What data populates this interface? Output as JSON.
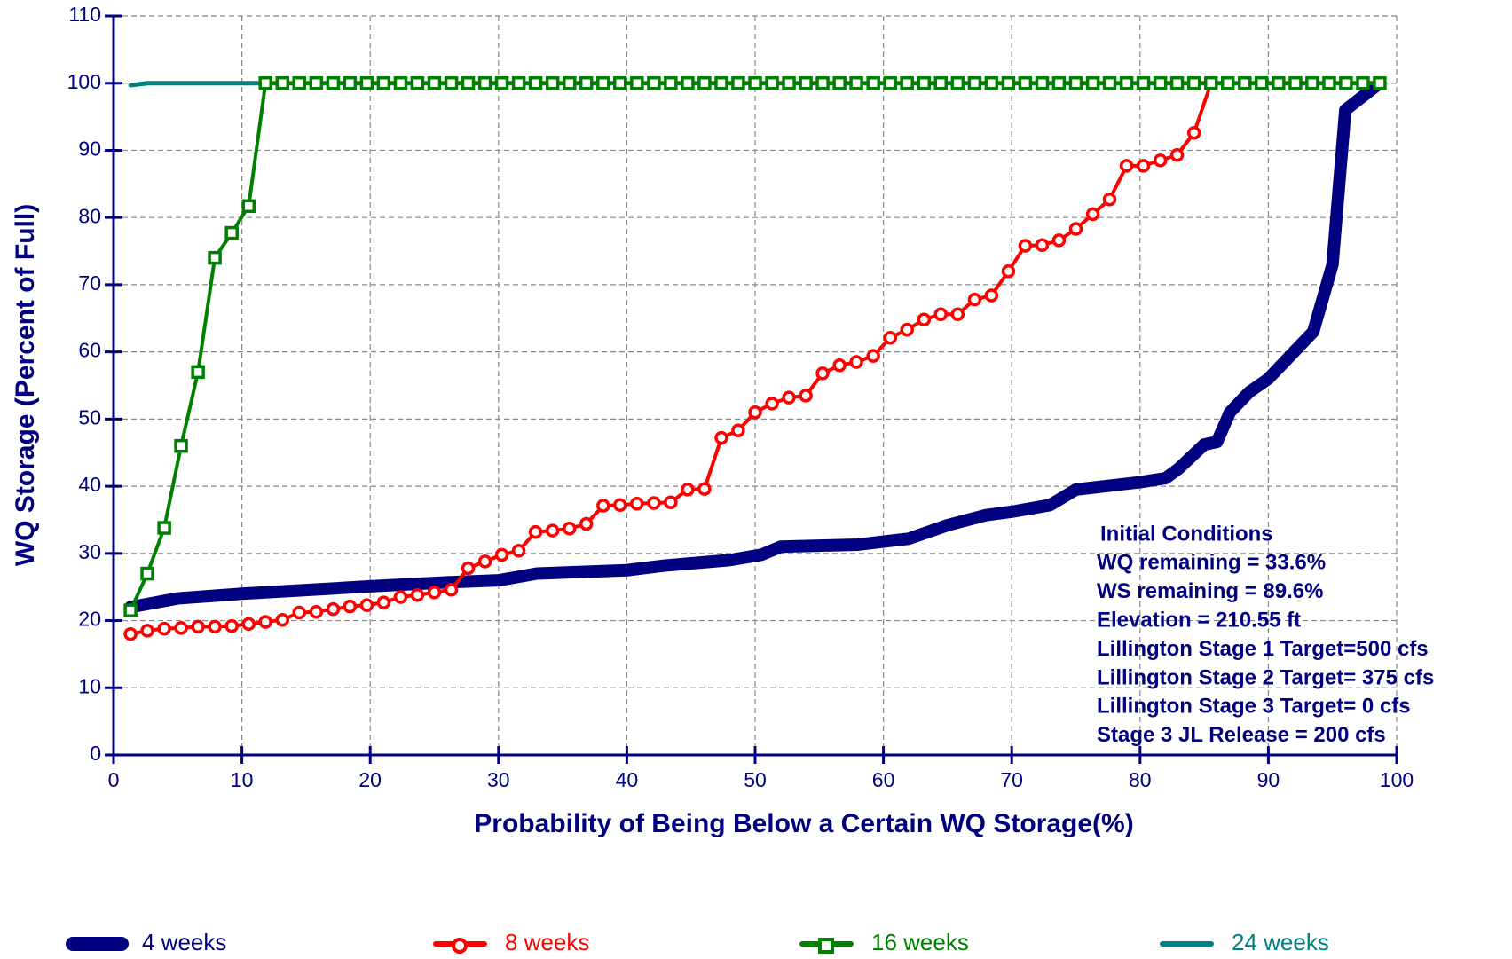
{
  "chart_data": {
    "type": "line",
    "ylabel": "WQ Storage (Percent of Full)",
    "xlabel": "Probability of Being Below a Certain WQ Storage(%)",
    "xlim": [
      0,
      100
    ],
    "xticks": [
      0,
      10,
      20,
      30,
      40,
      50,
      60,
      70,
      80,
      90,
      100
    ],
    "ylim": [
      0,
      110
    ],
    "yticks": [
      0,
      10,
      20,
      30,
      40,
      50,
      60,
      70,
      80,
      90,
      100,
      110
    ],
    "grid": true,
    "legend": "bottom",
    "annotation": [
      "Initial Conditions",
      "WQ remaining = 33.6%",
      "WS remaining = 89.6%",
      "Elevation = 210.55 ft",
      "Lillington Stage 1 Target=500 cfs",
      "Lillington Stage 2 Target= 375 cfs",
      "Lillington Stage 3 Target= 0 cfs",
      "Stage 3 JL Release = 200 cfs"
    ],
    "x": [
      1.32,
      2.63,
      3.95,
      5.26,
      6.58,
      7.89,
      9.21,
      10.53,
      11.84,
      13.16,
      14.47,
      15.79,
      17.11,
      18.42,
      19.74,
      21.05,
      22.37,
      23.68,
      25,
      26.32,
      27.63,
      28.95,
      30.26,
      31.58,
      32.89,
      34.21,
      35.53,
      36.84,
      38.16,
      39.47,
      40.79,
      42.11,
      43.42,
      44.74,
      46.05,
      47.37,
      48.68,
      50,
      51.32,
      52.63,
      53.95,
      55.26,
      56.58,
      57.89,
      59.21,
      60.53,
      61.84,
      63.16,
      64.47,
      65.79,
      67.11,
      68.42,
      69.74,
      71.05,
      72.37,
      73.68,
      75,
      76.32,
      77.63,
      78.95,
      80.26,
      81.58,
      82.89,
      84.21,
      85.53,
      86.84,
      88.16,
      89.47,
      90.79,
      92.11,
      93.42,
      94.74,
      96.05,
      97.37,
      98.68
    ],
    "series": [
      {
        "name": "24 weeks",
        "color": "#008080",
        "marker": "none",
        "width": 5,
        "x": [
          1.32,
          2.63,
          3.95,
          98.68
        ],
        "values": [
          99.7,
          100,
          100,
          100
        ]
      },
      {
        "name": "4 weeks",
        "color": "#000080",
        "marker": "none",
        "width": 14,
        "x": [
          1.32,
          5,
          10,
          20,
          26,
          30,
          33,
          40,
          43,
          48,
          50.5,
          52,
          58,
          62,
          65,
          68,
          70,
          73,
          75,
          80,
          82,
          83,
          85,
          86,
          87,
          88.5,
          90,
          92,
          93.5,
          95,
          96,
          98.68
        ],
        "values": [
          22,
          23.3,
          24,
          25.1,
          25.7,
          26,
          27,
          27.5,
          28.2,
          29,
          29.8,
          31,
          31.3,
          32.2,
          34.2,
          35.7,
          36.2,
          37.2,
          39.5,
          40.6,
          41.2,
          42.6,
          46.2,
          46.6,
          51,
          54,
          56,
          60,
          63,
          73,
          96,
          100
        ]
      },
      {
        "name": "8 weeks",
        "color": "#ff0000",
        "marker": "circle",
        "width": 4,
        "values": [
          18,
          18.5,
          18.8,
          18.9,
          19.1,
          19.1,
          19.2,
          19.5,
          19.8,
          20.1,
          21.2,
          21.3,
          21.7,
          22.1,
          22.3,
          22.7,
          23.5,
          23.8,
          24.2,
          24.6,
          27.8,
          28.8,
          29.8,
          30.4,
          33.2,
          33.4,
          33.7,
          34.4,
          37.1,
          37.2,
          37.4,
          37.5,
          37.6,
          39.5,
          39.6,
          47.2,
          48.3,
          51,
          52.3,
          53.2,
          53.5,
          56.8,
          58,
          58.5,
          59.4,
          62.1,
          63.3,
          64.8,
          65.6,
          65.6,
          67.8,
          68.4,
          72,
          75.8,
          75.9,
          76.6,
          78.3,
          80.5,
          82.7,
          87.7,
          87.7,
          88.5,
          89.3,
          92.6,
          100,
          100,
          100,
          100,
          100,
          100,
          100,
          100,
          100,
          100,
          100
        ]
      },
      {
        "name": "16 weeks",
        "color": "#008000",
        "marker": "square",
        "width": 4,
        "values": [
          21.5,
          27,
          33.8,
          46,
          57,
          74,
          77.7,
          81.7,
          100,
          100,
          100,
          100,
          100,
          100,
          100,
          100,
          100,
          100,
          100,
          100,
          100,
          100,
          100,
          100,
          100,
          100,
          100,
          100,
          100,
          100,
          100,
          100,
          100,
          100,
          100,
          100,
          100,
          100,
          100,
          100,
          100,
          100,
          100,
          100,
          100,
          100,
          100,
          100,
          100,
          100,
          100,
          100,
          100,
          100,
          100,
          100,
          100,
          100,
          100,
          100,
          100,
          100,
          100,
          100,
          100,
          100,
          100,
          100,
          100,
          100,
          100,
          100,
          100,
          100,
          100
        ]
      }
    ]
  }
}
